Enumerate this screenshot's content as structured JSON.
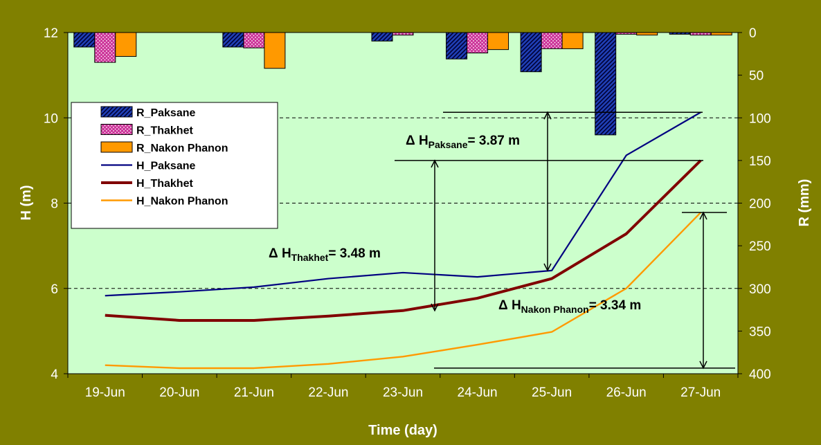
{
  "colors": {
    "outer_background": "#808000",
    "plot_background": "#ccffcc",
    "paksane": "#000080",
    "thakhet": "#800000",
    "nakon_phanon": "#ff9900",
    "thakhet_bar": "#cc3399",
    "paksane_bar": "#1f3fb5"
  },
  "chart_data": {
    "type": "line",
    "categories": [
      "19-Jun",
      "20-Jun",
      "21-Jun",
      "22-Jun",
      "23-Jun",
      "24-Jun",
      "25-Jun",
      "26-Jun",
      "27-Jun"
    ],
    "xlabel": "Time (day)",
    "ylabel": "H (m)",
    "y2label": "R (mm)",
    "ylim": [
      4,
      12
    ],
    "yticks": [
      "4",
      "6",
      "8",
      "10",
      "12"
    ],
    "y2lim": [
      400,
      0
    ],
    "y2ticks": [
      "0",
      "50",
      "100",
      "150",
      "200",
      "250",
      "300",
      "350",
      "400"
    ],
    "grid": "dashed at 6, 8, 10",
    "legend_placement": "left",
    "line_series": [
      {
        "name": "H_Paksane",
        "values": [
          5.83,
          5.92,
          6.03,
          6.23,
          6.37,
          6.27,
          6.42,
          9.12,
          10.13
        ]
      },
      {
        "name": "H_Thakhet",
        "values": [
          5.37,
          5.25,
          5.25,
          5.35,
          5.48,
          5.77,
          6.23,
          7.28,
          9.0
        ]
      },
      {
        "name": "H_Nakon Phanon",
        "values": [
          4.2,
          4.13,
          4.13,
          4.23,
          4.4,
          4.68,
          4.98,
          6.0,
          7.78
        ]
      }
    ],
    "bar_series": [
      {
        "name": "R_Paksane",
        "values": [
          17,
          0,
          17,
          0,
          10,
          31,
          46,
          120,
          2
        ]
      },
      {
        "name": "R_Thakhet",
        "values": [
          35,
          0,
          18,
          0,
          3,
          24,
          19,
          2,
          3
        ]
      },
      {
        "name": "R_Nakon Phanon",
        "values": [
          28,
          0,
          42,
          0,
          0,
          20,
          19,
          3,
          3
        ]
      }
    ],
    "annotations": [
      {
        "delta": "Δ",
        "label": "H",
        "sub": "Paksane",
        "value": "= 3.87 m"
      },
      {
        "delta": "Δ",
        "label": "H",
        "sub": "Thakhet",
        "value": "= 3.48 m"
      },
      {
        "delta": "Δ",
        "label": "H",
        "sub": "Nakon Phanon",
        "value": "= 3.34 m"
      }
    ]
  }
}
